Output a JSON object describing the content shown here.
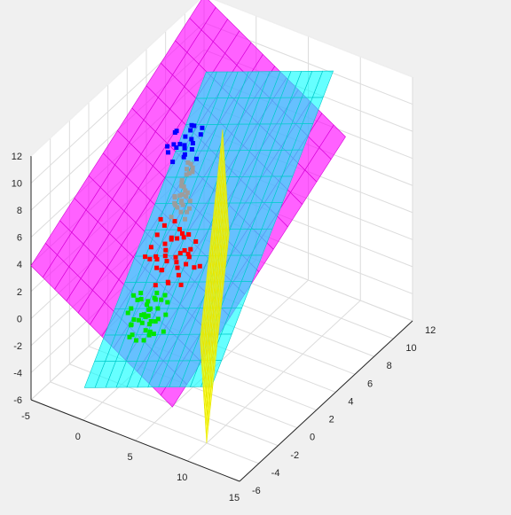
{
  "chart_data": {
    "type": "scatter",
    "dimensions": "3d",
    "grid": true,
    "background": "#f0f0f0",
    "axes": {
      "x": {
        "range": [
          -5,
          15
        ],
        "ticks": [
          "-5",
          "0",
          "5",
          "10",
          "15"
        ]
      },
      "y": {
        "range": [
          -6,
          12
        ],
        "ticks": [
          "-6",
          "-4",
          "-2",
          "0",
          "2",
          "4",
          "6",
          "8",
          "10",
          "12"
        ]
      },
      "z": {
        "range": [
          -6,
          12
        ],
        "ticks": [
          "-6",
          "-4",
          "-2",
          "0",
          "2",
          "4",
          "6",
          "8",
          "10",
          "12"
        ]
      }
    },
    "series": [
      {
        "color": "#ff0000",
        "marker": "square",
        "points": [
          [
            -1.4,
            3.2,
            -0.6
          ],
          [
            -1.0,
            3.6,
            0.4
          ],
          [
            -0.6,
            2.8,
            -0.9
          ],
          [
            -0.2,
            3.4,
            1.1
          ],
          [
            0.2,
            2.6,
            -1.4
          ],
          [
            0.6,
            3.9,
            0.2
          ],
          [
            1.0,
            3.1,
            -1.7
          ],
          [
            1.4,
            4.2,
            0.9
          ],
          [
            -1.8,
            2.4,
            0.0
          ],
          [
            -0.8,
            4.4,
            1.6
          ],
          [
            0.0,
            2.2,
            -0.3
          ],
          [
            0.8,
            2.9,
            1.8
          ],
          [
            1.8,
            3.6,
            -0.5
          ],
          [
            -1.2,
            4.0,
            -1.2
          ],
          [
            -0.4,
            2.0,
            0.7
          ],
          [
            0.4,
            4.6,
            -0.8
          ],
          [
            1.2,
            2.4,
            0.5
          ],
          [
            2.0,
            3.0,
            1.3
          ],
          [
            -1.6,
            3.8,
            1.9
          ],
          [
            -0.9,
            2.5,
            -1.9
          ],
          [
            0.1,
            3.7,
            -1.1
          ],
          [
            0.9,
            4.0,
            1.4
          ],
          [
            1.6,
            2.2,
            -0.2
          ],
          [
            -0.5,
            3.0,
            2.3
          ],
          [
            0.3,
            3.3,
            0.0
          ],
          [
            -0.1,
            2.7,
            0.8
          ],
          [
            1.1,
            3.5,
            -0.4
          ],
          [
            -1.1,
            2.9,
            1.5
          ],
          [
            0.7,
            2.1,
            -1.0
          ],
          [
            -0.3,
            4.8,
            0.3
          ],
          [
            1.5,
            3.3,
            0.6
          ],
          [
            -2.0,
            3.1,
            -0.7
          ],
          [
            0.5,
            3.5,
            2.0
          ],
          [
            -0.7,
            3.3,
            -0.2
          ],
          [
            1.3,
            2.7,
            1.0
          ],
          [
            -1.5,
            2.7,
            0.6
          ],
          [
            0.2,
            4.1,
            1.2
          ],
          [
            -0.6,
            2.3,
            -0.4
          ],
          [
            1.7,
            4.3,
            -0.9
          ],
          [
            -1.3,
            4.6,
            0.1
          ]
        ]
      },
      {
        "color": "#0000ff",
        "marker": "square",
        "points": [
          [
            3.2,
            0.6,
            11.0
          ],
          [
            3.8,
            1.2,
            10.4
          ],
          [
            2.8,
            -0.2,
            10.8
          ],
          [
            4.2,
            0.0,
            11.4
          ],
          [
            3.4,
            1.6,
            11.8
          ],
          [
            4.6,
            0.8,
            10.2
          ],
          [
            2.6,
            0.9,
            11.6
          ],
          [
            3.6,
            -0.6,
            10.6
          ],
          [
            4.0,
            1.9,
            11.1
          ],
          [
            3.0,
            0.3,
            12.0
          ],
          [
            4.4,
            -0.3,
            11.0
          ],
          [
            3.3,
            1.0,
            10.0
          ],
          [
            3.9,
            0.4,
            11.9
          ],
          [
            2.9,
            1.4,
            10.3
          ],
          [
            4.1,
            1.1,
            12.3
          ],
          [
            3.5,
            -0.1,
            11.3
          ],
          [
            2.7,
            0.5,
            10.9
          ],
          [
            4.3,
            0.6,
            11.7
          ],
          [
            3.7,
            1.4,
            10.7
          ],
          [
            3.1,
            1.8,
            11.2
          ],
          [
            4.5,
            1.5,
            12.0
          ],
          [
            3.0,
            -0.5,
            11.5
          ]
        ]
      },
      {
        "color": "#00e600",
        "marker": "square",
        "points": [
          [
            3.2,
            -3.4,
            1.0
          ],
          [
            3.8,
            -2.6,
            0.2
          ],
          [
            2.6,
            -3.8,
            0.4
          ],
          [
            4.4,
            -3.0,
            1.6
          ],
          [
            3.0,
            -2.2,
            -0.3
          ],
          [
            4.0,
            -4.2,
            1.2
          ],
          [
            2.8,
            -3.0,
            1.8
          ],
          [
            3.6,
            -3.6,
            -0.6
          ],
          [
            4.6,
            -2.4,
            0.8
          ],
          [
            2.4,
            -2.8,
            0.0
          ],
          [
            3.4,
            -4.4,
            1.4
          ],
          [
            4.2,
            -3.2,
            -0.2
          ],
          [
            3.0,
            -3.6,
            2.2
          ],
          [
            3.8,
            -2.0,
            1.4
          ],
          [
            2.6,
            -4.0,
            -0.4
          ],
          [
            4.4,
            -3.8,
            0.4
          ],
          [
            3.2,
            -2.6,
            -1.0
          ],
          [
            4.0,
            -2.8,
            2.0
          ],
          [
            2.8,
            -2.4,
            1.0
          ],
          [
            3.6,
            -4.8,
            0.6
          ],
          [
            4.8,
            -3.4,
            1.2
          ],
          [
            3.4,
            -3.2,
            0.8
          ],
          [
            2.2,
            -3.4,
            1.2
          ],
          [
            3.0,
            -4.6,
            1.9
          ],
          [
            4.2,
            -2.2,
            -0.7
          ],
          [
            3.6,
            -3.0,
            0.2
          ],
          [
            4.6,
            -4.0,
            2.3
          ],
          [
            2.9,
            -3.9,
            2.7
          ],
          [
            3.3,
            -2.8,
            0.6
          ],
          [
            3.9,
            -3.9,
            1.6
          ],
          [
            3.6,
            -3.4,
            0.0
          ],
          [
            4.4,
            -2.0,
            1.4
          ],
          [
            2.5,
            -3.2,
            -1.2
          ],
          [
            3.1,
            -4.4,
            0.9
          ],
          [
            4.0,
            -3.6,
            2.4
          ],
          [
            3.7,
            -2.6,
            1.9
          ],
          [
            3.2,
            -1.8,
            1.6
          ],
          [
            4.9,
            -2.8,
            2.6
          ],
          [
            2.7,
            -2.1,
            0.4
          ],
          [
            3.5,
            -3.8,
            3.0
          ]
        ]
      },
      {
        "color": "#9c9c9c",
        "marker": "square",
        "points": [
          [
            2.4,
            1.6,
            5.8
          ],
          [
            2.8,
            1.2,
            6.3
          ],
          [
            2.0,
            2.2,
            5.1
          ],
          [
            3.0,
            0.8,
            7.0
          ],
          [
            2.6,
            1.8,
            6.6
          ],
          [
            2.2,
            1.4,
            5.5
          ],
          [
            3.2,
            1.0,
            7.6
          ],
          [
            2.9,
            1.6,
            8.0
          ],
          [
            2.5,
            2.0,
            6.0
          ],
          [
            3.4,
            0.6,
            8.4
          ],
          [
            2.1,
            1.9,
            4.8
          ],
          [
            2.7,
            1.3,
            7.3
          ],
          [
            3.1,
            1.5,
            6.8
          ],
          [
            2.3,
            1.1,
            5.9
          ],
          [
            3.3,
            1.2,
            8.8
          ],
          [
            2.8,
            2.0,
            7.8
          ],
          [
            2.4,
            0.9,
            6.2
          ],
          [
            3.0,
            1.8,
            5.4
          ],
          [
            2.6,
            0.7,
            6.9
          ],
          [
            3.5,
            1.4,
            9.1
          ],
          [
            2.2,
            2.4,
            4.5
          ],
          [
            3.2,
            1.9,
            8.1
          ],
          [
            2.0,
            1.0,
            5.0
          ],
          [
            2.9,
            0.4,
            7.1
          ],
          [
            3.6,
            1.0,
            9.5
          ],
          [
            2.5,
            1.6,
            6.4
          ],
          [
            2.3,
            2.1,
            4.2
          ],
          [
            3.1,
            0.9,
            7.9
          ],
          [
            2.7,
            2.2,
            5.6
          ],
          [
            3.4,
            1.7,
            8.6
          ]
        ]
      }
    ],
    "surfaces": [
      {
        "color": "#ffff00",
        "edge": "#e6e600",
        "alpha": 0.72
      },
      {
        "color": "#00ffff",
        "edge": "#00c8c8",
        "alpha": 0.6
      },
      {
        "color": "#ff00ff",
        "edge": "#d600d6",
        "alpha": 0.62
      }
    ]
  }
}
